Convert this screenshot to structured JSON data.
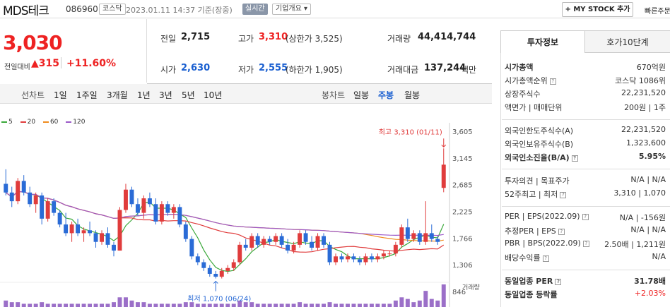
{
  "header": {
    "stock_name": "MDS테크",
    "stock_code": "086960",
    "market": "코스닥",
    "datetime": "2023.01.11 14:37 기준(장중)",
    "realtime": "실시간",
    "overview": "기업개요 ▾",
    "mystock": "+ MY STOCK 추가",
    "quick_order": "빠른주문"
  },
  "price": {
    "current": "3,030",
    "change_label": "전일대비",
    "change_value": "▲315",
    "change_rate": "+11.60%"
  },
  "quote": {
    "prev_close_label": "전일",
    "prev_close": "2,715",
    "high_label": "고가",
    "high": "3,310",
    "upper_limit": "(상한가 3,525)",
    "volume_label": "거래량",
    "volume": "44,414,744",
    "open_label": "시가",
    "open": "2,630",
    "low_label": "저가",
    "low": "2,555",
    "lower_limit": "(하한가 1,905)",
    "trade_value_label": "거래대금",
    "trade_value": "137,244",
    "trade_value_unit": "백만"
  },
  "toolbar": {
    "line_chart": "선차트",
    "line_periods": [
      "1일",
      "1주일",
      "3개월",
      "1년",
      "3년",
      "5년",
      "10년"
    ],
    "candle_chart": "봉차트",
    "candle_periods": [
      "일봉",
      "주봉",
      "월봉"
    ],
    "active_candle": "주봉"
  },
  "legend": [
    {
      "label": "5",
      "color": "#3aa83a"
    },
    {
      "label": "20",
      "color": "#e03c3c"
    },
    {
      "label": "60",
      "color": "#f08c1e"
    },
    {
      "label": "120",
      "color": "#9b59c8"
    }
  ],
  "chart_data": {
    "type": "candlestick",
    "y_ticks": [
      "3,605",
      "3,145",
      "2,685",
      "2,225",
      "1,766",
      "1,306",
      "846"
    ],
    "annotation_high": "최고 3,310 (01/11)",
    "annotation_low": "최저 1,070 (06/24)",
    "volume_label": "거래량",
    "candles": [
      [
        2700,
        2950,
        2500,
        2550
      ],
      [
        2550,
        2650,
        2300,
        2400
      ],
      [
        2400,
        2800,
        2350,
        2750
      ],
      [
        2750,
        2850,
        2500,
        2550
      ],
      [
        2550,
        2650,
        2300,
        2350
      ],
      [
        2350,
        2550,
        2200,
        2500
      ],
      [
        2500,
        2550,
        2000,
        2100
      ],
      [
        2100,
        2450,
        2050,
        2400
      ],
      [
        2400,
        2450,
        2150,
        2200
      ],
      [
        2200,
        2250,
        1950,
        2000
      ],
      [
        2000,
        2200,
        1800,
        1850
      ],
      [
        1850,
        2050,
        1700,
        2000
      ],
      [
        2000,
        2100,
        1800,
        1850
      ],
      [
        1850,
        1950,
        1700,
        1900
      ],
      [
        1900,
        2050,
        1800,
        1850
      ],
      [
        1850,
        1900,
        1600,
        1700
      ],
      [
        1700,
        1900,
        1650,
        1850
      ],
      [
        1850,
        1950,
        1600,
        1650
      ],
      [
        1650,
        1700,
        1450,
        1550
      ],
      [
        1550,
        2300,
        1550,
        2250
      ],
      [
        2250,
        2700,
        2200,
        2600
      ],
      [
        2600,
        2650,
        2300,
        2350
      ],
      [
        2350,
        2450,
        2150,
        2200
      ],
      [
        2200,
        2500,
        2100,
        2450
      ],
      [
        2450,
        2550,
        2300,
        2350
      ],
      [
        2350,
        2450,
        2000,
        2050
      ],
      [
        2050,
        2400,
        2000,
        2350
      ],
      [
        2350,
        2400,
        2150,
        2200
      ],
      [
        2200,
        2350,
        2100,
        2300
      ],
      [
        2300,
        2350,
        1950,
        2000
      ],
      [
        2000,
        2050,
        1700,
        1750
      ],
      [
        1750,
        1800,
        1400,
        1450
      ],
      [
        1450,
        1500,
        1300,
        1350
      ],
      [
        1350,
        1400,
        1200,
        1250
      ],
      [
        1250,
        1300,
        1100,
        1150
      ],
      [
        1150,
        1200,
        1070,
        1100
      ],
      [
        1100,
        1250,
        1070,
        1200
      ],
      [
        1200,
        1300,
        1150,
        1250
      ],
      [
        1250,
        1400,
        1200,
        1350
      ],
      [
        1350,
        1700,
        1300,
        1650
      ],
      [
        1650,
        1750,
        1550,
        1600
      ],
      [
        1600,
        1850,
        1550,
        1800
      ],
      [
        1800,
        1850,
        1600,
        1650
      ],
      [
        1650,
        1800,
        1600,
        1750
      ],
      [
        1750,
        1800,
        1650,
        1700
      ],
      [
        1700,
        1850,
        1650,
        1800
      ],
      [
        1800,
        1850,
        1600,
        1650
      ],
      [
        1650,
        1750,
        1500,
        1550
      ],
      [
        1550,
        1700,
        1500,
        1650
      ],
      [
        1650,
        1900,
        1600,
        1850
      ],
      [
        1850,
        1900,
        1650,
        1700
      ],
      [
        1700,
        1800,
        1550,
        1600
      ],
      [
        1600,
        1850,
        1550,
        1800
      ],
      [
        1800,
        1850,
        1600,
        1650
      ],
      [
        1650,
        1700,
        1300,
        1350
      ],
      [
        1350,
        1500,
        1300,
        1450
      ],
      [
        1450,
        1500,
        1350,
        1400
      ],
      [
        1400,
        1500,
        1350,
        1450
      ],
      [
        1450,
        1500,
        1350,
        1400
      ],
      [
        1400,
        1450,
        1300,
        1350
      ],
      [
        1350,
        1500,
        1300,
        1450
      ],
      [
        1450,
        1500,
        1350,
        1400
      ],
      [
        1400,
        1500,
        1350,
        1450
      ],
      [
        1450,
        1550,
        1400,
        1500
      ],
      [
        1500,
        1550,
        1450,
        1500
      ],
      [
        1500,
        1700,
        1450,
        1650
      ],
      [
        1650,
        2000,
        1600,
        1950
      ],
      [
        1950,
        2100,
        1700,
        1750
      ],
      [
        1750,
        1900,
        1700,
        1850
      ],
      [
        1850,
        1900,
        1650,
        1700
      ],
      [
        1700,
        2400,
        1650,
        1850
      ],
      [
        1850,
        2000,
        1700,
        1750
      ],
      [
        1750,
        1800,
        1650,
        1700
      ],
      [
        2630,
        3310,
        2555,
        3030
      ]
    ],
    "volumes": [
      4,
      3,
      3,
      2,
      2,
      2,
      3,
      2,
      2,
      2,
      2,
      2,
      2,
      2,
      2,
      2,
      2,
      2,
      3,
      6,
      6,
      4,
      3,
      3,
      2,
      2,
      2,
      2,
      2,
      2,
      3,
      3,
      2,
      2,
      2,
      2,
      2,
      2,
      2,
      4,
      3,
      3,
      2,
      2,
      2,
      2,
      2,
      2,
      2,
      3,
      2,
      2,
      2,
      2,
      3,
      2,
      2,
      2,
      2,
      2,
      2,
      2,
      2,
      2,
      2,
      4,
      6,
      5,
      3,
      4,
      10,
      5,
      4,
      14
    ]
  },
  "right_panel": {
    "tab_info": "투자정보",
    "tab_orderbook": "호가10단계",
    "market_cap_label": "시가총액",
    "market_cap": "670억원",
    "market_cap_rank_label": "시가총액순위",
    "market_cap_rank": "코스닥 1086위",
    "shares_label": "상장주식수",
    "shares": "22,231,520",
    "par_label": "액면가 | 매매단위",
    "par": "200원 | 1주",
    "foreign_limit_label": "외국인한도주식수(A)",
    "foreign_limit": "22,231,520",
    "foreign_hold_label": "외국인보유주식수(B)",
    "foreign_hold": "1,323,600",
    "foreign_ratio_label": "외국인소진율(B/A)",
    "foreign_ratio": "5.95%",
    "opinion_label": "투자의견 | 목표주가",
    "opinion": "N/A | N/A",
    "w52_label": "52주최고 | 최저",
    "w52": "3,310 | 1,070",
    "per_label": "PER | EPS(2022.09)",
    "per": "N/A | -156원",
    "est_per_label": "추정PER | EPS",
    "est_per": "N/A | N/A",
    "pbr_label": "PBR | BPS(2022.09)",
    "pbr": "2.50배 | 1,211원",
    "div_label": "배당수익률",
    "div": "N/A",
    "ind_per_label": "동일업종 PER",
    "ind_per": "31.78배",
    "ind_rate_label": "동일업종 등락률",
    "ind_rate": "+2.03%"
  }
}
